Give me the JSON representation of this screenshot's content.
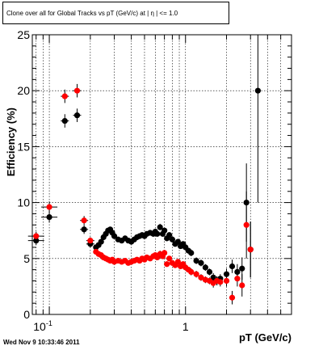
{
  "title": "Clone  over all for Global Tracks vs pT (GeV/c) at |  η | <= 1.0",
  "footer": "Wed Nov  9 10:33:46 2011",
  "chart_data": {
    "type": "scatter",
    "xlabel": "pT (GeV/c)",
    "ylabel": "Efficiency (%)",
    "xscale": "log",
    "xlim": [
      0.075,
      6.0
    ],
    "ylim": [
      0,
      25
    ],
    "grid": true,
    "y_ticks": [
      "0",
      "5",
      "10",
      "15",
      "20",
      "25"
    ],
    "x_tick_labels": [
      {
        "value": 0.1,
        "base": "10",
        "exp": "-1"
      },
      {
        "value": 1,
        "base": "1",
        "exp": ""
      }
    ],
    "series": [
      {
        "color": "#000000",
        "points": [
          [
            0.08,
            6.6,
            0.4
          ],
          [
            0.1,
            8.7,
            0.5
          ],
          [
            0.13,
            17.3,
            0.6
          ],
          [
            0.16,
            17.8,
            0.6
          ],
          [
            0.18,
            7.6,
            0.4
          ],
          [
            0.2,
            6.3,
            0.3
          ],
          [
            0.22,
            6.0,
            0.2
          ],
          [
            0.23,
            6.2,
            0.2
          ],
          [
            0.24,
            6.5,
            0.2
          ],
          [
            0.25,
            6.9,
            0.2
          ],
          [
            0.26,
            7.2,
            0.2
          ],
          [
            0.27,
            7.5,
            0.2
          ],
          [
            0.28,
            7.6,
            0.2
          ],
          [
            0.29,
            7.3,
            0.2
          ],
          [
            0.3,
            7.0,
            0.2
          ],
          [
            0.32,
            6.7,
            0.2
          ],
          [
            0.34,
            6.6,
            0.2
          ],
          [
            0.36,
            6.8,
            0.2
          ],
          [
            0.38,
            6.6,
            0.2
          ],
          [
            0.4,
            6.5,
            0.2
          ],
          [
            0.42,
            6.7,
            0.2
          ],
          [
            0.44,
            6.9,
            0.2
          ],
          [
            0.46,
            7.0,
            0.2
          ],
          [
            0.48,
            7.1,
            0.2
          ],
          [
            0.5,
            7.0,
            0.2
          ],
          [
            0.52,
            7.2,
            0.2
          ],
          [
            0.55,
            7.3,
            0.2
          ],
          [
            0.58,
            7.2,
            0.2
          ],
          [
            0.6,
            7.4,
            0.2
          ],
          [
            0.62,
            7.2,
            0.2
          ],
          [
            0.65,
            7.8,
            0.3
          ],
          [
            0.68,
            7.2,
            0.2
          ],
          [
            0.7,
            7.5,
            0.2
          ],
          [
            0.73,
            6.8,
            0.2
          ],
          [
            0.76,
            7.1,
            0.2
          ],
          [
            0.8,
            6.7,
            0.2
          ],
          [
            0.84,
            6.3,
            0.2
          ],
          [
            0.88,
            6.5,
            0.2
          ],
          [
            0.92,
            6.1,
            0.2
          ],
          [
            0.96,
            6.3,
            0.2
          ],
          [
            1.0,
            6.0,
            0.2
          ],
          [
            1.05,
            5.7,
            0.2
          ],
          [
            1.1,
            5.5,
            0.3
          ],
          [
            1.2,
            4.8,
            0.3
          ],
          [
            1.3,
            4.6,
            0.3
          ],
          [
            1.4,
            4.2,
            0.3
          ],
          [
            1.5,
            3.8,
            0.3
          ],
          [
            1.6,
            3.3,
            0.4
          ],
          [
            1.7,
            3.0,
            0.4
          ],
          [
            1.8,
            3.2,
            0.4
          ],
          [
            2.0,
            3.6,
            0.5
          ],
          [
            2.2,
            4.3,
            0.6
          ],
          [
            2.4,
            3.8,
            0.7
          ],
          [
            2.6,
            4.1,
            1.0
          ],
          [
            2.8,
            10.0,
            3.5
          ],
          [
            3.0,
            5.8,
            2.5
          ],
          [
            3.4,
            20.0,
            10.0
          ]
        ]
      },
      {
        "color": "#ff0000",
        "points": [
          [
            0.08,
            7.0,
            0.4
          ],
          [
            0.1,
            9.6,
            0.5
          ],
          [
            0.13,
            19.5,
            0.6
          ],
          [
            0.16,
            20.0,
            0.6
          ],
          [
            0.18,
            8.4,
            0.4
          ],
          [
            0.2,
            6.6,
            0.3
          ],
          [
            0.22,
            5.6,
            0.2
          ],
          [
            0.23,
            5.4,
            0.2
          ],
          [
            0.24,
            5.3,
            0.2
          ],
          [
            0.25,
            5.1,
            0.2
          ],
          [
            0.26,
            5.0,
            0.2
          ],
          [
            0.27,
            4.9,
            0.2
          ],
          [
            0.28,
            4.8,
            0.2
          ],
          [
            0.29,
            4.9,
            0.2
          ],
          [
            0.3,
            4.7,
            0.2
          ],
          [
            0.32,
            4.8,
            0.2
          ],
          [
            0.34,
            4.7,
            0.2
          ],
          [
            0.36,
            4.8,
            0.2
          ],
          [
            0.38,
            4.6,
            0.2
          ],
          [
            0.4,
            4.7,
            0.2
          ],
          [
            0.42,
            4.8,
            0.2
          ],
          [
            0.44,
            4.9,
            0.2
          ],
          [
            0.46,
            4.8,
            0.2
          ],
          [
            0.48,
            5.0,
            0.2
          ],
          [
            0.5,
            4.9,
            0.2
          ],
          [
            0.52,
            5.1,
            0.2
          ],
          [
            0.55,
            5.0,
            0.2
          ],
          [
            0.58,
            5.2,
            0.2
          ],
          [
            0.6,
            5.3,
            0.2
          ],
          [
            0.62,
            5.1,
            0.2
          ],
          [
            0.65,
            5.4,
            0.3
          ],
          [
            0.68,
            5.2,
            0.2
          ],
          [
            0.7,
            5.5,
            0.2
          ],
          [
            0.73,
            4.5,
            0.2
          ],
          [
            0.76,
            5.0,
            0.2
          ],
          [
            0.8,
            4.6,
            0.2
          ],
          [
            0.84,
            4.4,
            0.2
          ],
          [
            0.88,
            4.7,
            0.2
          ],
          [
            0.92,
            4.3,
            0.2
          ],
          [
            0.96,
            4.5,
            0.2
          ],
          [
            1.0,
            4.2,
            0.2
          ],
          [
            1.05,
            4.0,
            0.2
          ],
          [
            1.1,
            3.8,
            0.3
          ],
          [
            1.2,
            3.6,
            0.3
          ],
          [
            1.3,
            3.3,
            0.3
          ],
          [
            1.4,
            3.1,
            0.3
          ],
          [
            1.5,
            3.0,
            0.3
          ],
          [
            1.6,
            2.8,
            0.4
          ],
          [
            1.7,
            3.0,
            0.4
          ],
          [
            1.8,
            2.9,
            0.4
          ],
          [
            2.0,
            3.0,
            0.5
          ],
          [
            2.2,
            1.5,
            0.6
          ],
          [
            2.4,
            3.2,
            0.7
          ],
          [
            2.6,
            2.6,
            1.0
          ],
          [
            2.8,
            8.0,
            3.0
          ],
          [
            3.0,
            5.8,
            2.5
          ]
        ]
      }
    ]
  }
}
